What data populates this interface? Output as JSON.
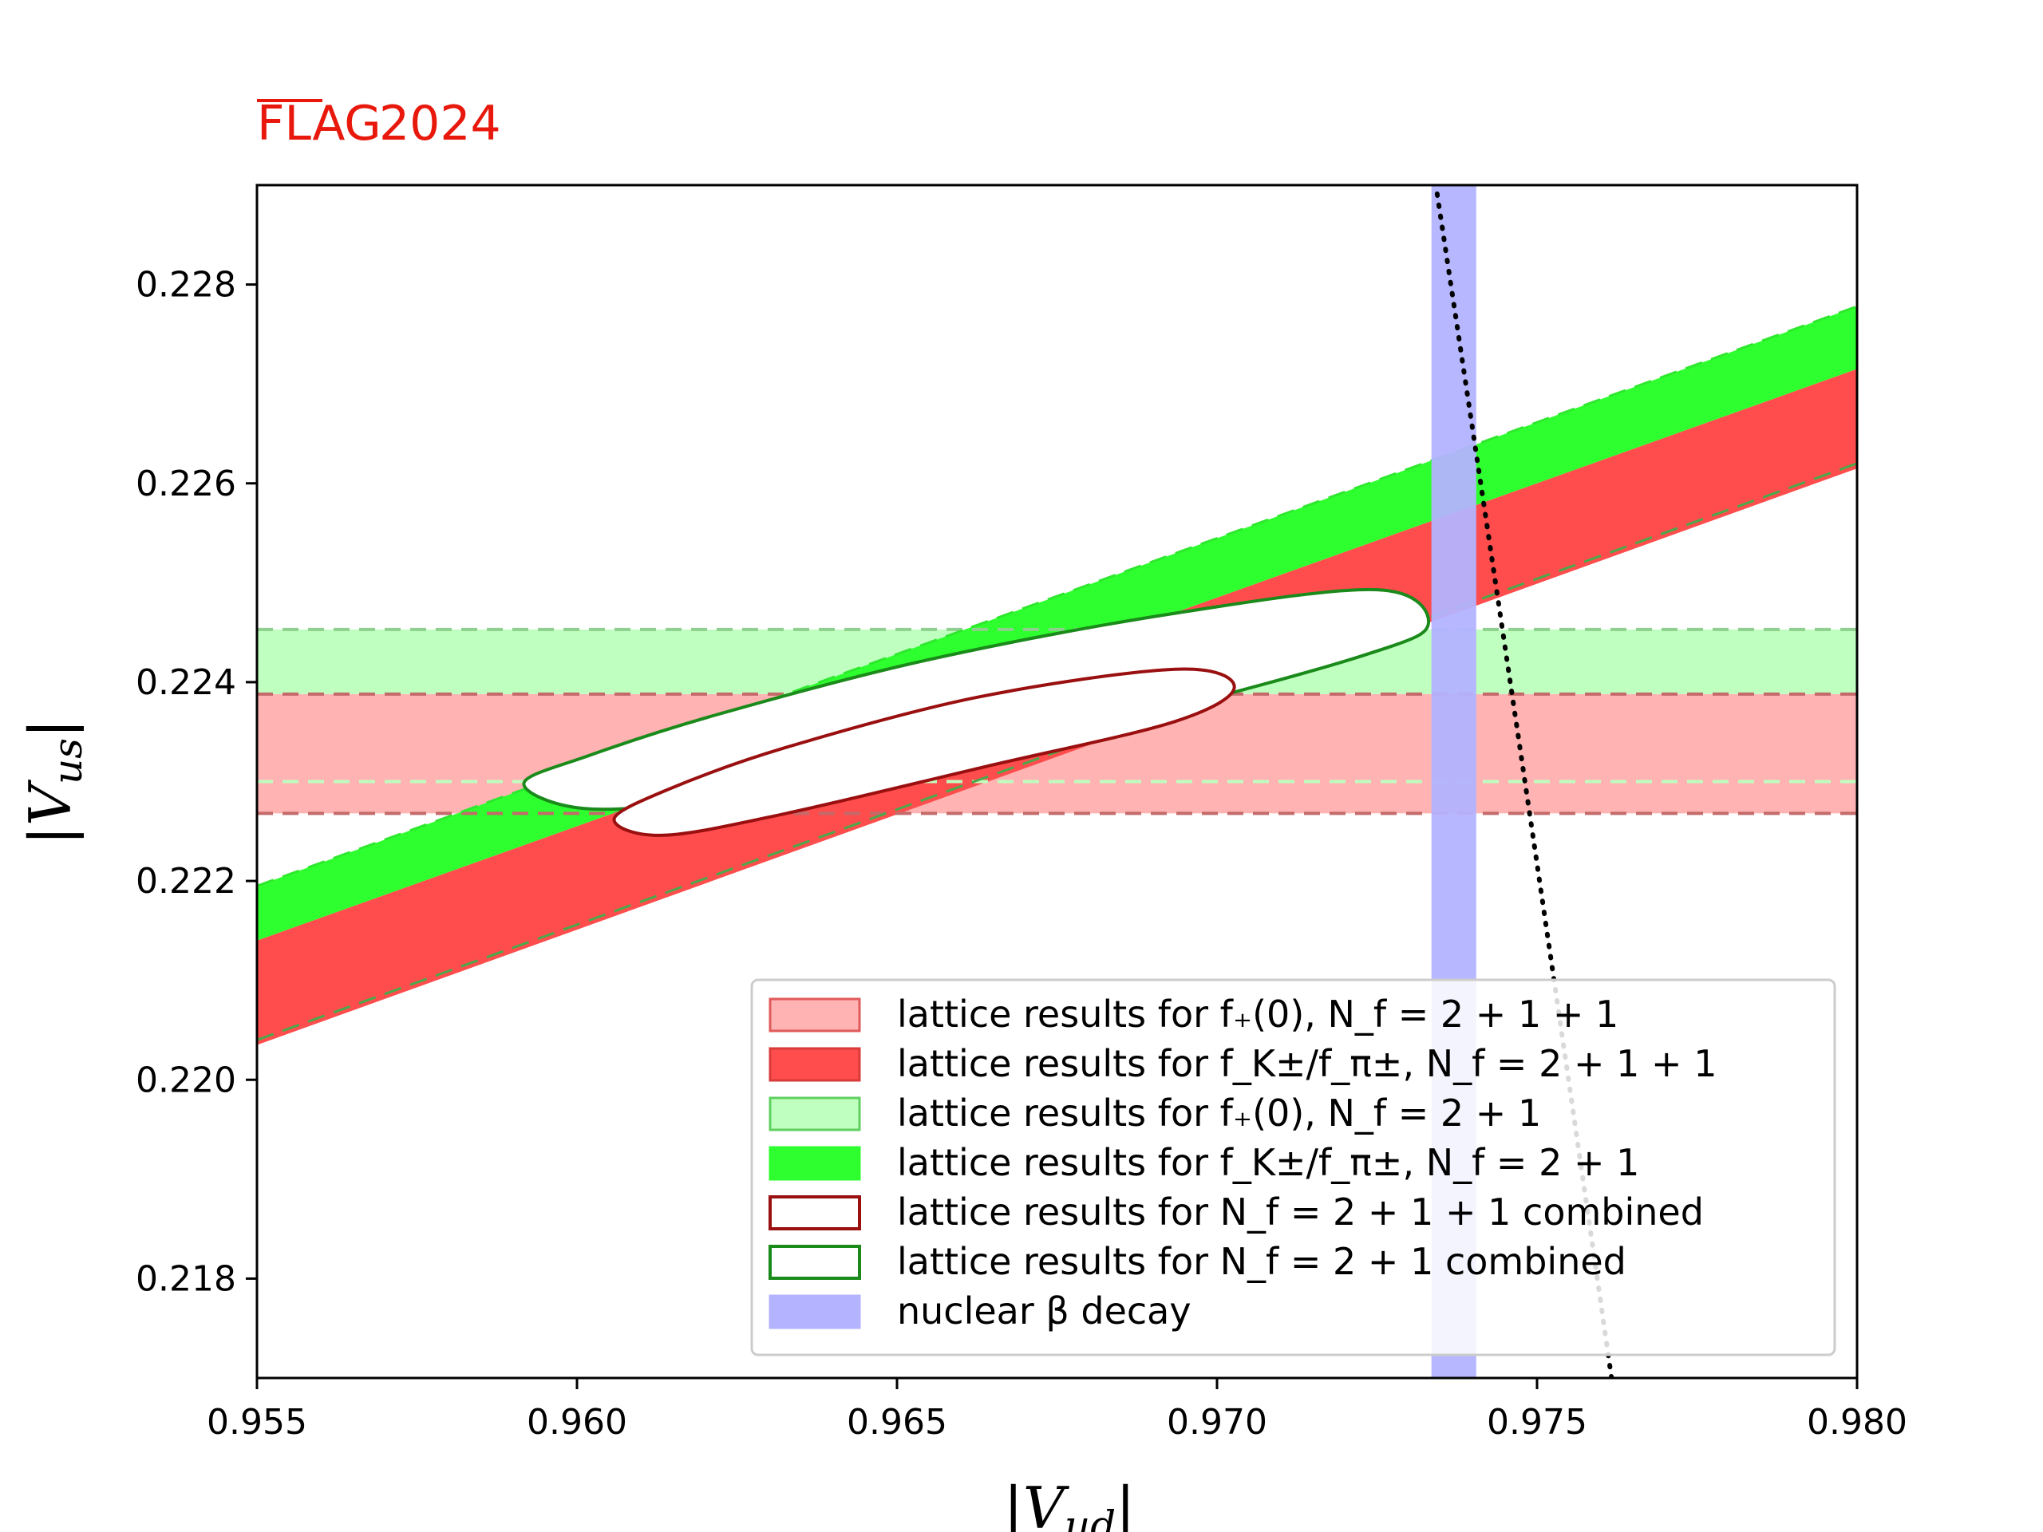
{
  "logo": {
    "flag": "FLAG",
    "year": "2024",
    "color": "#e8180c"
  },
  "chart_data": {
    "type": "area",
    "xlabel": "|V_ud|",
    "ylabel": "|V_us|",
    "xlim": [
      0.955,
      0.98
    ],
    "ylim": [
      0.217,
      0.229
    ],
    "x_ticks": [
      "0.955",
      "0.960",
      "0.965",
      "0.970",
      "0.975",
      "0.980"
    ],
    "y_ticks": [
      "0.218",
      "0.220",
      "0.222",
      "0.224",
      "0.226",
      "0.228"
    ],
    "grid": false,
    "legend_position": "lower-right",
    "bands": [
      {
        "id": "fplus-2111",
        "kind": "horizontal",
        "color": "#ffb3b3",
        "y_low": 0.22268,
        "y_high": 0.22388,
        "edge_color": "#b83a3a"
      },
      {
        "id": "fplus-21",
        "kind": "horizontal",
        "color": "#bfffbf",
        "y_low": 0.22388,
        "y_high": 0.22453,
        "edge_color": "#5fbf5f"
      },
      {
        "id": "fk-21",
        "kind": "diagonal",
        "color": "#2eff2e",
        "y_at_xmin": [
          0.2214,
          0.22195
        ],
        "y_at_xmax": [
          0.22715,
          0.22778
        ]
      },
      {
        "id": "fk-2111",
        "kind": "diagonal",
        "color": "#ff4d4d",
        "y_at_xmin": [
          0.22035,
          0.2214
        ],
        "y_at_xmax": [
          0.22615,
          0.22715
        ]
      },
      {
        "id": "beta-decay",
        "kind": "vertical",
        "color": "#b3b3ff",
        "x_low": 0.97335,
        "x_high": 0.97405
      }
    ],
    "dashed_lines": [
      {
        "kind": "horizontal",
        "y": 0.223,
        "color": "#bfffbf"
      },
      {
        "kind": "horizontal",
        "y": 0.22268,
        "color": "#c46a6a"
      },
      {
        "kind": "horizontal",
        "y": 0.22388,
        "color": "#c46a6a"
      },
      {
        "kind": "horizontal",
        "y": 0.22453,
        "color": "#8fcf8f"
      },
      {
        "kind": "diagonal",
        "y_at_xmin": 0.2204,
        "y_at_xmax": 0.2262,
        "color": "#4aa84a"
      },
      {
        "kind": "diagonal",
        "y_at_xmin": 0.22195,
        "y_at_xmax": 0.22778,
        "color": "#2ee82e"
      }
    ],
    "unitarity_curve": {
      "color": "#000000",
      "style": "dotted"
    },
    "ellipses": [
      {
        "id": "combined-21",
        "color": "#1a8a1a",
        "points": [
          [
            0.95917,
            0.22298
          ],
          [
            0.96018,
            0.22326
          ],
          [
            0.96217,
            0.22367
          ],
          [
            0.96552,
            0.22423
          ],
          [
            0.96931,
            0.22469
          ],
          [
            0.97251,
            0.22493
          ],
          [
            0.9733,
            0.22458
          ],
          [
            0.97229,
            0.22427
          ],
          [
            0.96895,
            0.22368
          ],
          [
            0.96516,
            0.22312
          ],
          [
            0.96208,
            0.22281
          ],
          [
            0.9601,
            0.22273
          ]
        ]
      },
      {
        "id": "combined-2111",
        "color": "#9a0f0f",
        "points": [
          [
            0.96058,
            0.22262
          ],
          [
            0.96142,
            0.22292
          ],
          [
            0.96325,
            0.22334
          ],
          [
            0.96627,
            0.22385
          ],
          [
            0.96935,
            0.22413
          ],
          [
            0.97027,
            0.22395
          ],
          [
            0.96932,
            0.2236
          ],
          [
            0.96638,
            0.22315
          ],
          [
            0.96327,
            0.22268
          ],
          [
            0.96135,
            0.22246
          ]
        ]
      }
    ],
    "legend": [
      {
        "label": "lattice results for f₊(0), N_f = 2 + 1 + 1",
        "swatch": "#ffb3b3",
        "edge": "#e05a5a",
        "style": "filled"
      },
      {
        "label": "lattice results for f_K±/f_π±, N_f = 2 + 1 + 1",
        "swatch": "#ff4d4d",
        "edge": "#d93a3a",
        "style": "filled"
      },
      {
        "label": "lattice results for f₊(0), N_f = 2 + 1",
        "swatch": "#bfffbf",
        "edge": "#5fcf5f",
        "style": "filled"
      },
      {
        "label": "lattice results for f_K±/f_π±, N_f = 2 + 1",
        "swatch": "#2eff2e",
        "edge": "#2eff2e",
        "style": "filled"
      },
      {
        "label": "lattice results for N_f = 2 + 1 + 1 combined",
        "swatch": "#ffffff",
        "edge": "#9a0f0f",
        "style": "outline"
      },
      {
        "label": "lattice results for N_f = 2 + 1 combined",
        "swatch": "#ffffff",
        "edge": "#1a8a1a",
        "style": "outline"
      },
      {
        "label": "nuclear β decay",
        "swatch": "#b3b3ff",
        "edge": "#b3b3ff",
        "style": "filled"
      }
    ]
  }
}
